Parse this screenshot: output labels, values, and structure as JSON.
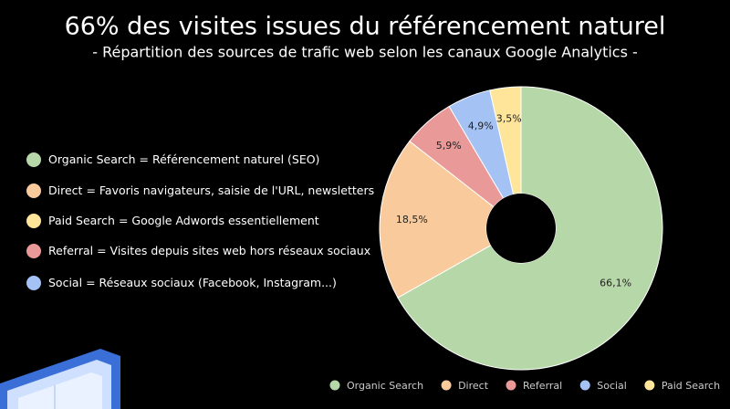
{
  "chart_data": {
    "type": "donut",
    "title": "66% des visites issues du référencement naturel",
    "subtitle": "- Répartition des sources de trafic web selon les canaux Google Analytics -",
    "series": [
      {
        "name": "Organic Search",
        "color": "#b6d7a8",
        "values": [
          66.1
        ],
        "value_labels": [
          "66,1%"
        ]
      },
      {
        "name": "Direct",
        "color": "#f9cb9c",
        "values": [
          18.5
        ],
        "value_labels": [
          "18,5%"
        ]
      },
      {
        "name": "Referral",
        "color": "#ea9999",
        "values": [
          5.9
        ],
        "value_labels": [
          "5,9%"
        ]
      },
      {
        "name": "Social",
        "color": "#a4c2f4",
        "values": [
          4.9
        ],
        "value_labels": [
          "4,9%"
        ]
      },
      {
        "name": "Paid Search",
        "color": "#ffe599",
        "values": [
          3.5
        ],
        "value_labels": [
          "3,5%"
        ]
      }
    ],
    "descriptions": [
      {
        "term": "Organic Search",
        "text": "= Référencement naturel (SEO)"
      },
      {
        "term": "Direct",
        "text": "= Favoris navigateurs, saisie de l'URL, newsletters"
      },
      {
        "term": "Paid Search",
        "text": "= Google Adwords essentiellement"
      },
      {
        "term": "Referral",
        "text": "=  Visites depuis sites web hors réseaux sociaux"
      },
      {
        "term": "Social",
        "text": "= Réseaux sociaux (Facebook, Instagram...)"
      }
    ],
    "legend": "bottom"
  }
}
